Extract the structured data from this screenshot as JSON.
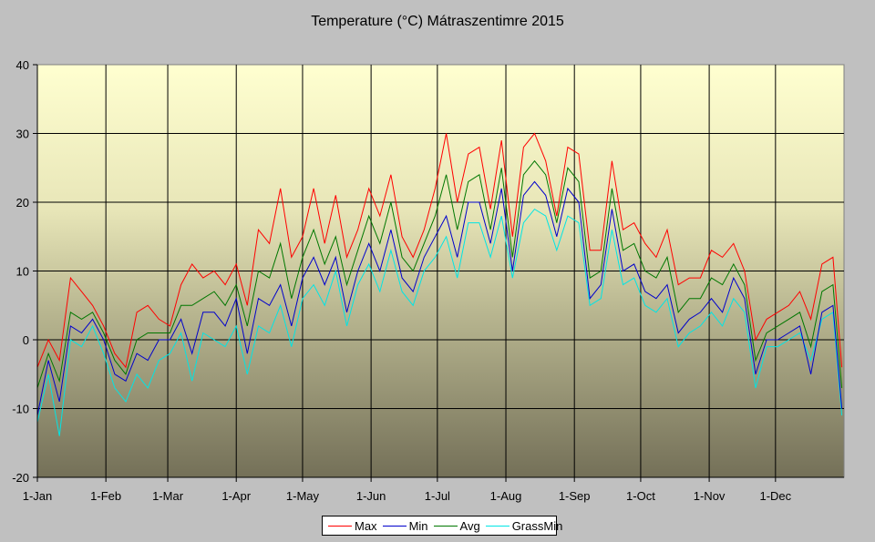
{
  "chart_data": {
    "type": "line",
    "title": "Temperature (°C) Mátraszentimre 2015",
    "xlabel": "",
    "ylabel": "",
    "ylim": [
      -20,
      40
    ],
    "yticks": [
      "40",
      "30",
      "20",
      "10",
      "0",
      "-10",
      "-20"
    ],
    "ytick_values": [
      40,
      30,
      20,
      10,
      0,
      -10,
      -20
    ],
    "xlim_days": [
      0,
      365
    ],
    "xticks": [
      "1-Jan",
      "1-Feb",
      "1-Mar",
      "1-Apr",
      "1-May",
      "1-Jun",
      "1-Jul",
      "1-Aug",
      "1-Sep",
      "1-Oct",
      "1-Nov",
      "1-Dec"
    ],
    "xtick_days": [
      0,
      31,
      59,
      90,
      120,
      151,
      181,
      212,
      243,
      273,
      304,
      334
    ],
    "grid": true,
    "legend_position": "bottom",
    "x_days": [
      0,
      5,
      10,
      15,
      20,
      25,
      30,
      35,
      40,
      45,
      50,
      55,
      60,
      65,
      70,
      75,
      80,
      85,
      90,
      95,
      100,
      105,
      110,
      115,
      120,
      125,
      130,
      135,
      140,
      145,
      150,
      155,
      160,
      165,
      170,
      175,
      180,
      185,
      190,
      195,
      200,
      205,
      210,
      215,
      220,
      225,
      230,
      235,
      240,
      245,
      250,
      255,
      260,
      265,
      270,
      275,
      280,
      285,
      290,
      295,
      300,
      305,
      310,
      315,
      320,
      325,
      330,
      335,
      340,
      345,
      350,
      355,
      360,
      364
    ],
    "series": [
      {
        "name": "Max",
        "color": "#ff0000",
        "values": [
          -4,
          0,
          -3,
          9,
          7,
          5,
          2,
          -2,
          -4,
          4,
          5,
          3,
          2,
          8,
          11,
          9,
          10,
          8,
          11,
          5,
          16,
          14,
          22,
          12,
          15,
          22,
          14,
          21,
          12,
          16,
          22,
          18,
          24,
          15,
          12,
          16,
          22,
          30,
          20,
          27,
          28,
          19,
          29,
          15,
          28,
          30,
          26,
          18,
          28,
          27,
          13,
          13,
          26,
          16,
          17,
          14,
          12,
          16,
          8,
          9,
          9,
          13,
          12,
          14,
          10,
          0,
          3,
          4,
          5,
          7,
          3,
          11,
          12,
          -4
        ]
      },
      {
        "name": "Min",
        "color": "#0000cc",
        "values": [
          -11,
          -3,
          -9,
          2,
          1,
          3,
          0,
          -5,
          -6,
          -2,
          -3,
          0,
          0,
          3,
          -2,
          4,
          4,
          2,
          6,
          -2,
          6,
          5,
          8,
          2,
          9,
          12,
          8,
          12,
          4,
          10,
          14,
          10,
          16,
          9,
          7,
          12,
          15,
          18,
          12,
          20,
          20,
          14,
          22,
          10,
          21,
          23,
          21,
          15,
          22,
          20,
          6,
          8,
          19,
          10,
          11,
          7,
          6,
          8,
          1,
          3,
          4,
          6,
          4,
          9,
          6,
          -5,
          0,
          0,
          1,
          2,
          -5,
          4,
          5,
          -10
        ]
      },
      {
        "name": "Avg",
        "color": "#007700",
        "values": [
          -7,
          -2,
          -6,
          4,
          3,
          4,
          1,
          -3,
          -5,
          0,
          1,
          1,
          1,
          5,
          5,
          6,
          7,
          5,
          8,
          2,
          10,
          9,
          14,
          6,
          12,
          16,
          11,
          15,
          8,
          13,
          18,
          14,
          20,
          12,
          10,
          14,
          18,
          24,
          16,
          23,
          24,
          16,
          25,
          12,
          24,
          26,
          24,
          17,
          25,
          23,
          9,
          10,
          22,
          13,
          14,
          10,
          9,
          12,
          4,
          6,
          6,
          9,
          8,
          11,
          8,
          -3,
          1,
          2,
          3,
          4,
          -1,
          7,
          8,
          -7
        ]
      },
      {
        "name": "GrassMin",
        "color": "#00e5e5",
        "values": [
          -12,
          -5,
          -14,
          0,
          -1,
          2,
          -2,
          -7,
          -9,
          -5,
          -7,
          -3,
          -2,
          1,
          -6,
          1,
          0,
          -1,
          2,
          -5,
          2,
          1,
          5,
          -1,
          6,
          8,
          5,
          10,
          2,
          8,
          11,
          7,
          13,
          7,
          5,
          10,
          12,
          15,
          9,
          17,
          17,
          12,
          18,
          9,
          17,
          19,
          18,
          13,
          18,
          17,
          5,
          6,
          16,
          8,
          9,
          5,
          4,
          6,
          -1,
          1,
          2,
          4,
          2,
          6,
          4,
          -7,
          -1,
          -1,
          0,
          1,
          -3,
          3,
          4,
          -11
        ]
      }
    ]
  }
}
